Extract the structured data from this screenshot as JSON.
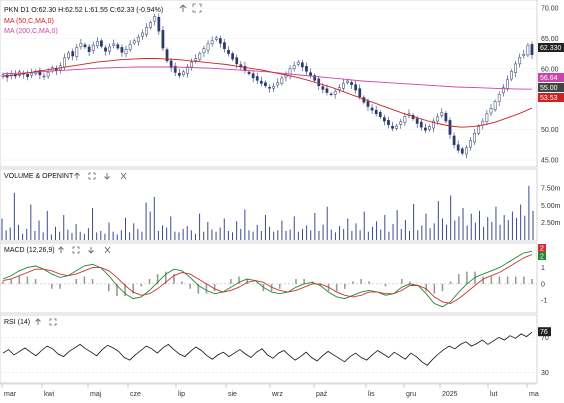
{
  "toolbar": {
    "price_header": "PKN  D1  O:62.30  H:62.52  L:61.55  C:62.33  (-0.94%)",
    "icons": [
      "up-arrow-icon",
      "fullscreen-icon",
      "down-arrow-icon"
    ]
  },
  "chart_data": [
    {
      "type": "candlestick",
      "panel": "price",
      "symbol": "PKN",
      "timeframe": "D1",
      "ohlc_current": {
        "open": 62.3,
        "high": 62.52,
        "low": 61.55,
        "close": 62.33,
        "change_pct": "-0.94%"
      },
      "ylim": [
        45,
        70
      ],
      "y_ticks": [
        "70.00",
        "65.00",
        "60.00",
        "55.00",
        "50.00",
        "45.00"
      ],
      "x_ticks": [
        "mar",
        "kwi",
        "maj",
        "cze",
        "lip",
        "sie",
        "wrz",
        "paź",
        "lis",
        "gru",
        "2025",
        "lut",
        "ma"
      ],
      "close_path": [
        59,
        58.6,
        59.2,
        58.8,
        59.5,
        59.1,
        58.7,
        59.3,
        59.6,
        59,
        58.8,
        59.4,
        60.2,
        59.7,
        60.5,
        61.8,
        62.6,
        62.1,
        63.5,
        64.2,
        63.6,
        62.8,
        63.9,
        64.5,
        63.7,
        62.9,
        63.6,
        64.1,
        63.4,
        62.7,
        63.2,
        64,
        64.6,
        65.2,
        65.9,
        66.8,
        67.6,
        68.6,
        66.2,
        63.4,
        61.3,
        60.2,
        59.4,
        58.9,
        59.5,
        60.3,
        61.1,
        61.7,
        62.5,
        63.3,
        64.1,
        64.6,
        65.1,
        64.2,
        63.3,
        62.5,
        61.6,
        60.8,
        60.3,
        59.7,
        59.2,
        58.5,
        58.1,
        57.6,
        57.2,
        56.8,
        57.1,
        57.7,
        58.5,
        59.1,
        60,
        60.5,
        61.1,
        60.3,
        59.6,
        58.9,
        58.1,
        57.2,
        56.6,
        56.1,
        55.8,
        56.3,
        56.9,
        57.6,
        58,
        57.4,
        56.5,
        55.4,
        54.5,
        53.8,
        53.2,
        52.6,
        52.1,
        51.4,
        50.8,
        50.2,
        50.6,
        51.3,
        52.2,
        52.6,
        51.8,
        51,
        50.4,
        49.9,
        50.5,
        51.4,
        52.1,
        52.8,
        51.4,
        49.2,
        47.5,
        46.6,
        46.1,
        47,
        48.2,
        49.4,
        50.5,
        51.4,
        52.6,
        53.5,
        54.6,
        55.8,
        56.9,
        58.2,
        59.6,
        60.8,
        61.9,
        62.4,
        63.9,
        62.33
      ],
      "series": [
        {
          "name": "MA (50,C,MA,0)",
          "color": "#cc2222",
          "last_value": "53.53",
          "path": [
            58.8,
            59,
            59.3,
            59.6,
            59.9,
            60.2,
            60.5,
            60.8,
            61.1,
            61.3,
            61.5,
            61.6,
            61.7,
            61.7,
            61.6,
            61.5,
            61.3,
            61.1,
            60.9,
            60.7,
            60.4,
            60.1,
            59.8,
            59.4,
            59,
            58.6,
            58.1,
            57.5,
            56.9,
            56.2,
            55.5,
            54.8,
            54.1,
            53.4,
            52.7,
            52.1,
            51.5,
            51,
            50.6,
            50.4,
            50.5,
            50.8,
            51.3,
            52,
            52.7,
            53.53
          ]
        },
        {
          "name": "MA (200,C,MA,0)",
          "color": "#cc44aa",
          "last_value": "56.64",
          "path": [
            59.2,
            59.3,
            59.5,
            59.7,
            59.9,
            60.1,
            60.2,
            60.3,
            60.3,
            60.3,
            60.2,
            60.1,
            59.9,
            59.7,
            59.5,
            59.2,
            58.9,
            58.6,
            58.3,
            58,
            57.8,
            57.6,
            57.4,
            57.2,
            57,
            56.9,
            56.8,
            56.7,
            56.64
          ]
        }
      ],
      "price_labels": [
        {
          "text": "62.330",
          "color": "#222222"
        },
        {
          "text": "56.64",
          "color": "#cc44aa"
        },
        {
          "text": "55.00",
          "color": "#444444"
        },
        {
          "text": "53.53",
          "color": "#cc2222"
        }
      ]
    },
    {
      "type": "bar",
      "panel": "volume",
      "title": "VOLUME & OPENINT",
      "y_ticks": [
        "7.50m",
        "5.00m",
        "2.50m"
      ],
      "ylim": [
        0,
        8.5
      ],
      "unit": "m",
      "values": [
        3.1,
        1.4,
        1.8,
        6.8,
        2.2,
        0.9,
        1.6,
        5.1,
        1.3,
        2.8,
        1.1,
        4.2,
        0.8,
        1.9,
        1.2,
        3.6,
        1.5,
        1,
        2.3,
        1.2,
        0.9,
        1.7,
        4.6,
        1.1,
        1.3,
        0.9,
        2.5,
        1.2,
        0.8,
        1.4,
        3.2,
        1.1,
        2.4,
        1.6,
        1.2,
        5.4,
        4.1,
        6.2,
        1.3,
        2.1,
        1.8,
        3.4,
        1.2,
        1.1,
        1.6,
        2,
        1.4,
        0.9,
        3.8,
        1.2,
        2.6,
        1.5,
        1.2,
        1.8,
        3.1,
        1.3,
        1.1,
        2.7,
        1.6,
        4.4,
        1.4,
        1.2,
        2.2,
        1.3,
        3.6,
        1.9,
        1.2,
        1.4,
        2.8,
        1.3,
        1.5,
        3.4,
        1.2,
        1.6,
        2.1,
        1.4,
        3.9,
        1.3,
        2.2,
        4.8,
        1.5,
        1.1,
        2,
        1.6,
        3.1,
        1.3,
        2.4,
        1.4,
        4.1,
        1.2,
        1.9,
        2.7,
        1.5,
        3.6,
        1.2,
        2.3,
        4.3,
        1.6,
        2.9,
        1.3,
        5.2,
        1.4,
        2.1,
        3.8,
        1.7,
        2.4,
        5.6,
        3.1,
        2.2,
        6.4,
        2.8,
        3.4,
        4.6,
        2.1,
        3.8,
        2.5,
        4.2,
        1.9,
        3.3,
        2.6,
        4.8,
        2.2,
        3.6,
        2.9,
        4.1,
        3.2,
        5.1,
        3.5,
        7.8,
        4.2
      ]
    },
    {
      "type": "line",
      "panel": "macd",
      "title": "MACD (12,26,9)",
      "ylim": [
        -1.6,
        2.2
      ],
      "y_ticks": [
        "2",
        "1",
        "0",
        "-1"
      ],
      "zero_line": true,
      "series": [
        {
          "name": "MACD",
          "color": "#228833",
          "values": [
            0.3,
            0.5,
            0.8,
            1.0,
            1.1,
            0.9,
            0.6,
            0.4,
            0.5,
            0.8,
            1.1,
            1.2,
            1.0,
            0.5,
            -0.1,
            -0.6,
            -0.9,
            -0.8,
            -0.4,
            0.1,
            0.6,
            0.9,
            0.8,
            0.4,
            -0.1,
            -0.4,
            -0.6,
            -0.5,
            -0.2,
            0.1,
            0.3,
            0.2,
            -0.2,
            -0.5,
            -0.6,
            -0.5,
            -0.2,
            0.0,
            0.1,
            -0.1,
            -0.5,
            -0.8,
            -0.9,
            -0.7,
            -0.5,
            -0.4,
            -0.5,
            -0.7,
            -0.6,
            -0.2,
            0.0,
            -0.1,
            -0.6,
            -1.2,
            -1.4,
            -1.1,
            -0.5,
            0.0,
            0.4,
            0.6,
            0.8,
            1.0,
            1.3,
            1.6,
            1.9,
            2.0
          ]
        },
        {
          "name": "Signal",
          "color": "#cc3333",
          "values": [
            0.2,
            0.3,
            0.5,
            0.7,
            0.9,
            0.9,
            0.8,
            0.6,
            0.5,
            0.6,
            0.8,
            1.0,
            1.0,
            0.8,
            0.4,
            -0.1,
            -0.5,
            -0.7,
            -0.6,
            -0.3,
            0.1,
            0.5,
            0.7,
            0.6,
            0.3,
            0.0,
            -0.3,
            -0.5,
            -0.4,
            -0.2,
            0.1,
            0.2,
            0.1,
            -0.2,
            -0.4,
            -0.5,
            -0.4,
            -0.2,
            0.0,
            0.0,
            -0.2,
            -0.5,
            -0.7,
            -0.8,
            -0.7,
            -0.5,
            -0.5,
            -0.6,
            -0.6,
            -0.4,
            -0.1,
            -0.1,
            -0.3,
            -0.8,
            -1.1,
            -1.2,
            -0.9,
            -0.5,
            -0.1,
            0.3,
            0.5,
            0.7,
            1.0,
            1.3,
            1.6,
            1.8
          ]
        }
      ],
      "badges": [
        {
          "text": "2",
          "color": "#cc3333"
        },
        {
          "text": "2",
          "color": "#228833"
        }
      ]
    },
    {
      "type": "line",
      "panel": "rsi",
      "title": "RSI (14)",
      "ylim": [
        20,
        90
      ],
      "y_ticks": [
        "70",
        "30"
      ],
      "series": [
        {
          "name": "RSI",
          "color": "#111111",
          "last_value": "76",
          "values": [
            52,
            56,
            50,
            54,
            58,
            53,
            49,
            55,
            60,
            57,
            51,
            48,
            54,
            58,
            62,
            57,
            53,
            49,
            56,
            61,
            58,
            54,
            47,
            44,
            50,
            55,
            60,
            57,
            52,
            58,
            62,
            56,
            51,
            48,
            54,
            59,
            55,
            49,
            45,
            50,
            53,
            48,
            52,
            56,
            51,
            47,
            53,
            57,
            50,
            46,
            52,
            55,
            49,
            44,
            48,
            53,
            47,
            43,
            49,
            54,
            50,
            46,
            42,
            48,
            52,
            47,
            44,
            50,
            55,
            51,
            47,
            53,
            49,
            45,
            52,
            48,
            42,
            38,
            45,
            51,
            56,
            60,
            57,
            62,
            65,
            60,
            63,
            67,
            62,
            66,
            70,
            67,
            72,
            69,
            74,
            71,
            76
          ]
        }
      ]
    }
  ]
}
